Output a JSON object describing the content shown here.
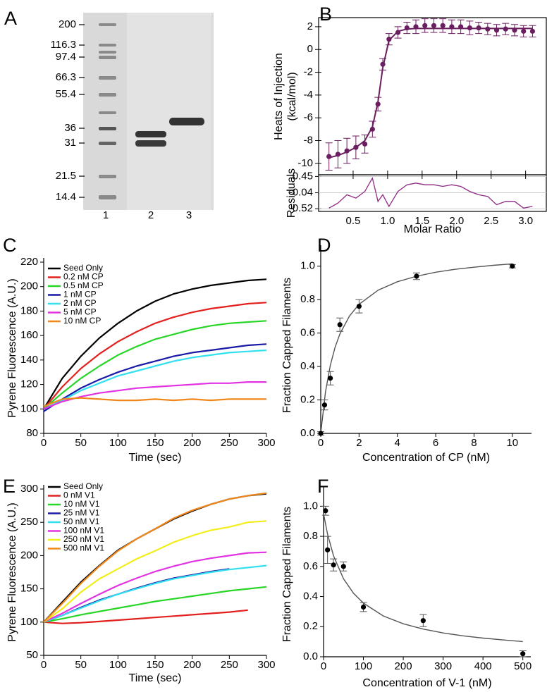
{
  "gel": {
    "panel_label": "A",
    "markers": [
      "200",
      "116.3",
      "97.4",
      "66.3",
      "55.4",
      "36",
      "31",
      "21.5",
      "14.4"
    ],
    "lanes": [
      "1",
      "2",
      "3"
    ]
  },
  "chart_data": [
    {
      "type": "scatter",
      "panel_label": "B",
      "ylabel": [
        "Heats of Injection",
        "(kcal/mol)"
      ],
      "color": "#6b1e5f",
      "x": [
        0.15,
        0.28,
        0.41,
        0.54,
        0.67,
        0.78,
        0.86,
        0.93,
        1.02,
        1.15,
        1.28,
        1.41,
        1.54,
        1.67,
        1.8,
        1.93,
        2.06,
        2.19,
        2.32,
        2.45,
        2.58,
        2.71,
        2.84,
        2.97,
        3.1
      ],
      "values": [
        -9.4,
        -9.2,
        -8.9,
        -8.6,
        -8.3,
        -7.0,
        -4.8,
        -1.3,
        0.9,
        1.5,
        1.9,
        2.0,
        2.1,
        2.1,
        2.1,
        2.0,
        2.0,
        1.9,
        1.9,
        1.8,
        1.7,
        1.8,
        1.7,
        1.6,
        1.6
      ],
      "errors": [
        1.2,
        1.2,
        1.1,
        1.0,
        0.8,
        0.7,
        0.6,
        0.5,
        0.5,
        0.5,
        0.5,
        0.6,
        0.6,
        0.6,
        0.6,
        0.6,
        0.6,
        0.6,
        0.5,
        0.5,
        0.5,
        0.5,
        0.5,
        0.5,
        0.5
      ],
      "fit": {
        "x": [
          0.15,
          0.28,
          0.41,
          0.54,
          0.67,
          0.78,
          0.86,
          0.93,
          1.02,
          1.15,
          1.28,
          1.41,
          1.54,
          1.67,
          1.8,
          1.93,
          2.06,
          2.19,
          2.32,
          2.45,
          2.58,
          2.71,
          2.84,
          2.97,
          3.1
        ],
        "values": [
          -9.5,
          -9.3,
          -9.0,
          -8.6,
          -8.0,
          -6.8,
          -4.6,
          -1.6,
          0.8,
          1.6,
          1.8,
          1.85,
          1.85,
          1.85,
          1.85,
          1.85,
          1.85,
          1.85,
          1.85,
          1.85,
          1.85,
          1.85,
          1.85,
          1.85,
          1.85
        ]
      },
      "xlim": [
        0,
        3.3
      ],
      "ylim": [
        -11,
        2.8
      ],
      "yticks": [
        -10,
        -8,
        -6,
        -4,
        -2,
        0,
        2
      ]
    },
    {
      "type": "line",
      "ylabel": "Residuals",
      "xlabel": "Molar Ratio",
      "color": "#8e2a84",
      "x": [
        0.15,
        0.28,
        0.41,
        0.54,
        0.67,
        0.78,
        0.86,
        0.93,
        1.02,
        1.15,
        1.28,
        1.41,
        1.54,
        1.67,
        1.8,
        1.93,
        2.06,
        2.19,
        2.32,
        2.45,
        2.58,
        2.71,
        2.84,
        2.97,
        3.1
      ],
      "values": [
        -0.5,
        -0.35,
        -0.1,
        -0.2,
        0.0,
        0.4,
        -0.3,
        -0.1,
        -0.45,
        0.0,
        0.2,
        0.25,
        0.2,
        0.2,
        0.15,
        0.2,
        0.15,
        0.0,
        -0.1,
        -0.15,
        -0.4,
        -0.3,
        -0.3,
        -0.5,
        -0.45
      ],
      "xlim": [
        0,
        3.3
      ],
      "ylim": [
        -0.6,
        0.5
      ],
      "yticks": [
        0.45,
        -0.04,
        -0.52
      ],
      "grid": true,
      "xticks": [
        0.5,
        {
          "value": 1,
          "label": "1.0"
        },
        1.5,
        {
          "value": 2,
          "label": "2.0"
        },
        2.5,
        {
          "value": 3,
          "label": "3.0"
        }
      ]
    },
    {
      "type": "line",
      "panel_label": "C",
      "xlabel": "Time (sec)",
      "ylabel": "Pyrene Fluorescence (A.U.)",
      "x": [
        0,
        25,
        50,
        75,
        100,
        125,
        150,
        175,
        200,
        225,
        250,
        275,
        300
      ],
      "series": [
        {
          "name": "Seed Only",
          "color": "#000000",
          "values": [
            100,
            125,
            143,
            158,
            170,
            180,
            188,
            194,
            198,
            201,
            203,
            205,
            206
          ]
        },
        {
          "name": "0.2 nM CP",
          "color": "#e3201e",
          "values": [
            100,
            118,
            133,
            145,
            155,
            163,
            170,
            175,
            179,
            182,
            184,
            186,
            187
          ]
        },
        {
          "name": "0.5 nM CP",
          "color": "#27d627",
          "values": [
            100,
            113,
            125,
            135,
            144,
            151,
            157,
            161,
            165,
            168,
            170,
            171,
            172
          ]
        },
        {
          "name": "1 nM CP",
          "color": "#1a1aa8",
          "values": [
            98,
            108,
            117,
            124,
            130,
            135,
            139,
            143,
            146,
            148,
            150,
            152,
            153
          ]
        },
        {
          "name": "2 nM CP",
          "color": "#33e0f0",
          "values": [
            100,
            107,
            115,
            121,
            127,
            131,
            135,
            139,
            142,
            144,
            146,
            147,
            148
          ]
        },
        {
          "name": "5 nM CP",
          "color": "#e233e2",
          "values": [
            100,
            106,
            110,
            113,
            115,
            117,
            118,
            119,
            120,
            121,
            121,
            122,
            122
          ]
        },
        {
          "name": "10 nM CP",
          "color": "#f0881c",
          "values": [
            102,
            108,
            109,
            108,
            107,
            107,
            108,
            107,
            108,
            107,
            108,
            108,
            108
          ]
        }
      ],
      "xlim": [
        0,
        300
      ],
      "ylim": [
        80,
        220
      ],
      "xticks": [
        0,
        50,
        100,
        150,
        200,
        250,
        300
      ],
      "yticks": [
        80,
        100,
        120,
        140,
        160,
        180,
        200,
        220
      ]
    },
    {
      "type": "scatter",
      "panel_label": "D",
      "xlabel": "Concentration of CP (nM)",
      "ylabel": "Fraction Capped Filaments",
      "color": "#000000",
      "x": [
        0,
        0.2,
        0.5,
        1,
        2,
        5,
        10
      ],
      "values": [
        0,
        0.17,
        0.33,
        0.65,
        0.76,
        0.94,
        1.0
      ],
      "errors": [
        0.01,
        0.03,
        0.04,
        0.04,
        0.04,
        0.02,
        0.01
      ],
      "fit": {
        "x": [
          0,
          0.25,
          0.5,
          0.75,
          1,
          1.5,
          2,
          3,
          4,
          5,
          6,
          7,
          8,
          9,
          10
        ],
        "values": [
          0,
          0.25,
          0.407,
          0.516,
          0.595,
          0.702,
          0.772,
          0.857,
          0.907,
          0.94,
          0.964,
          0.981,
          0.994,
          1.005,
          1.014
        ]
      },
      "xlim": [
        0,
        11
      ],
      "ylim": [
        0,
        1.1
      ],
      "xticks": [
        0,
        2,
        4,
        6,
        8,
        10
      ],
      "yticks": [
        {
          "value": 0,
          "label": "0.0"
        },
        0.2,
        0.4,
        0.6,
        0.8,
        {
          "value": 1,
          "label": "1.0"
        }
      ]
    },
    {
      "type": "line",
      "panel_label": "E",
      "xlabel": "Time (sec)",
      "ylabel": "Pyrene Fluorescence (A.U.)",
      "x": [
        0,
        25,
        50,
        75,
        100,
        125,
        150,
        175,
        200,
        225,
        250,
        275,
        300
      ],
      "series": [
        {
          "name": "Seed Only",
          "color": "#000000",
          "values": [
            100,
            130,
            160,
            185,
            208,
            225,
            240,
            255,
            267,
            277,
            285,
            290,
            293
          ]
        },
        {
          "name": "0 nM V1",
          "color": "#e3201e",
          "values": [
            100,
            98,
            99,
            101,
            103,
            105,
            107,
            109,
            111,
            113,
            115,
            118,
            null
          ]
        },
        {
          "name": "10 nM V1",
          "color": "#27d627",
          "values": [
            100,
            105,
            111,
            116,
            121,
            126,
            131,
            135,
            139,
            143,
            147,
            150,
            153
          ]
        },
        {
          "name": "25 nM V1",
          "color": "#1a1aa8",
          "values": [
            100,
            110,
            122,
            133,
            142,
            151,
            159,
            166,
            171,
            176,
            180,
            null,
            null
          ]
        },
        {
          "name": "50 nM V1",
          "color": "#33e0f0",
          "values": [
            100,
            110,
            121,
            132,
            142,
            150,
            158,
            165,
            170,
            175,
            179,
            182,
            185
          ]
        },
        {
          "name": "100 nM V1",
          "color": "#e233e2",
          "values": [
            100,
            113,
            128,
            142,
            155,
            166,
            176,
            184,
            191,
            196,
            200,
            204,
            205
          ]
        },
        {
          "name": "250 nM V1",
          "color": "#f2ee1a",
          "values": [
            100,
            120,
            145,
            165,
            180,
            195,
            207,
            220,
            230,
            238,
            243,
            250,
            252
          ]
        },
        {
          "name": "500 nM V1",
          "color": "#f0881c",
          "values": [
            100,
            128,
            158,
            184,
            207,
            225,
            240,
            256,
            268,
            277,
            285,
            290,
            294
          ]
        }
      ],
      "xlim": [
        0,
        300
      ],
      "ylim": [
        50,
        300
      ],
      "xticks": [
        0,
        50,
        100,
        150,
        200,
        250,
        300
      ],
      "yticks": [
        50,
        100,
        150,
        200,
        250,
        300
      ]
    },
    {
      "type": "scatter",
      "panel_label": "F",
      "xlabel": "Concentration of V-1 (nM)",
      "ylabel": "Fraction Capped Filaments",
      "color": "#000000",
      "x": [
        5,
        10,
        25,
        50,
        100,
        250,
        500
      ],
      "values": [
        0.97,
        0.71,
        0.61,
        0.6,
        0.33,
        0.24,
        0.02
      ],
      "errors": [
        0.03,
        0.09,
        0.04,
        0.03,
        0.03,
        0.04,
        0.02
      ],
      "fit": {
        "x": [
          0,
          10,
          25,
          50,
          75,
          100,
          150,
          200,
          250,
          300,
          350,
          400,
          450,
          500
        ],
        "values": [
          0.95,
          0.814,
          0.671,
          0.518,
          0.422,
          0.356,
          0.271,
          0.219,
          0.184,
          0.158,
          0.139,
          0.124,
          0.112,
          0.101
        ]
      },
      "xlim": [
        0,
        520
      ],
      "ylim": [
        0,
        1.1
      ],
      "xticks": [
        0,
        100,
        200,
        300,
        400,
        500
      ],
      "yticks": [
        {
          "value": 0,
          "label": "0.0"
        },
        0.2,
        0.4,
        0.6,
        0.8,
        {
          "value": 1,
          "label": "1.0"
        }
      ]
    }
  ]
}
